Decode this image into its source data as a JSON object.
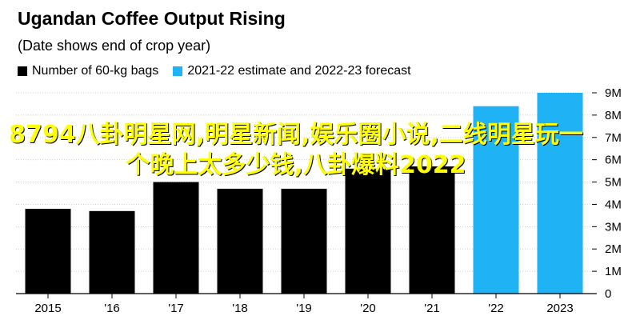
{
  "chart_data": {
    "type": "bar",
    "title": "Ugandan Coffee Output Rising",
    "subtitle": "(Date shows end of crop year)",
    "categories": [
      "2015",
      "'16",
      "'17",
      "'18",
      "'19",
      "'20",
      "'21",
      "'22",
      "2023"
    ],
    "series": [
      {
        "name": "Number of 60-kg bags",
        "color": "#000000",
        "values": [
          3.8,
          3.7,
          5.0,
          4.7,
          4.7,
          5.6,
          5.7,
          null,
          null
        ]
      },
      {
        "name": "2021-22 estimate and 2022-23 forecast",
        "color": "#1fb2f5",
        "values": [
          null,
          null,
          null,
          null,
          null,
          null,
          null,
          8.4,
          9.0
        ]
      }
    ],
    "y_ticks": [
      "0",
      "1M",
      "2M",
      "3M",
      "4M",
      "5M",
      "6M",
      "7M",
      "8M",
      "9M"
    ],
    "ylim": [
      0,
      9
    ],
    "y_axis_position": "right",
    "legend_position": "top-left"
  },
  "overlay_text": "8794八卦明星网,明星新闻,娱乐圈小说,二线明星玩一个晚上太多少钱,八卦爆料2022"
}
